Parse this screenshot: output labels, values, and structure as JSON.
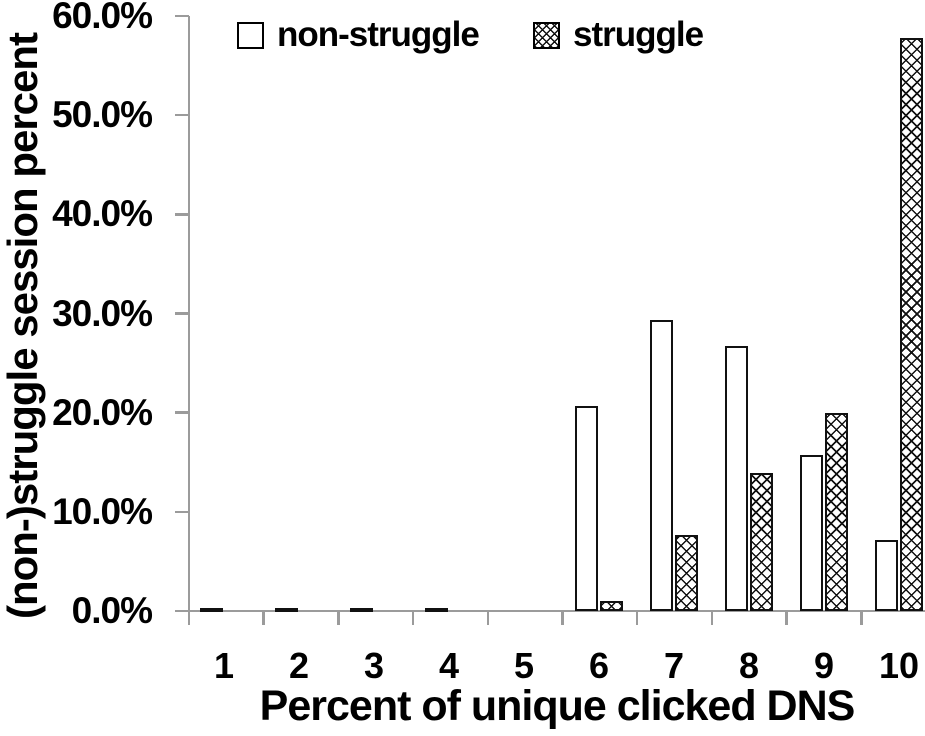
{
  "chart_data": {
    "type": "bar",
    "title": "",
    "xlabel": "Percent of unique clicked DNS",
    "ylabel": "(non-)struggle session percent",
    "categories": [
      "1",
      "2",
      "3",
      "4",
      "5",
      "6",
      "7",
      "8",
      "9",
      "10"
    ],
    "series": [
      {
        "name": "non-struggle",
        "pattern": "solid-white",
        "values": [
          0.2,
          0.3,
          0.3,
          0.2,
          0,
          20.7,
          29.3,
          26.7,
          15.7,
          7.2
        ]
      },
      {
        "name": "struggle",
        "pattern": "crosshatch",
        "values": [
          0,
          0,
          0,
          0,
          0,
          1.0,
          7.7,
          13.9,
          20.0,
          57.8
        ]
      }
    ],
    "y_ticks": [
      "0.0%",
      "10.0%",
      "20.0%",
      "30.0%",
      "40.0%",
      "50.0%",
      "60.0%"
    ],
    "ylim": [
      0,
      60
    ],
    "grid": false,
    "legend_position": "top"
  },
  "colors": {
    "bar_outline": "#000000",
    "axis": "#9b9b9b",
    "text": "#000000",
    "background": "#ffffff"
  }
}
